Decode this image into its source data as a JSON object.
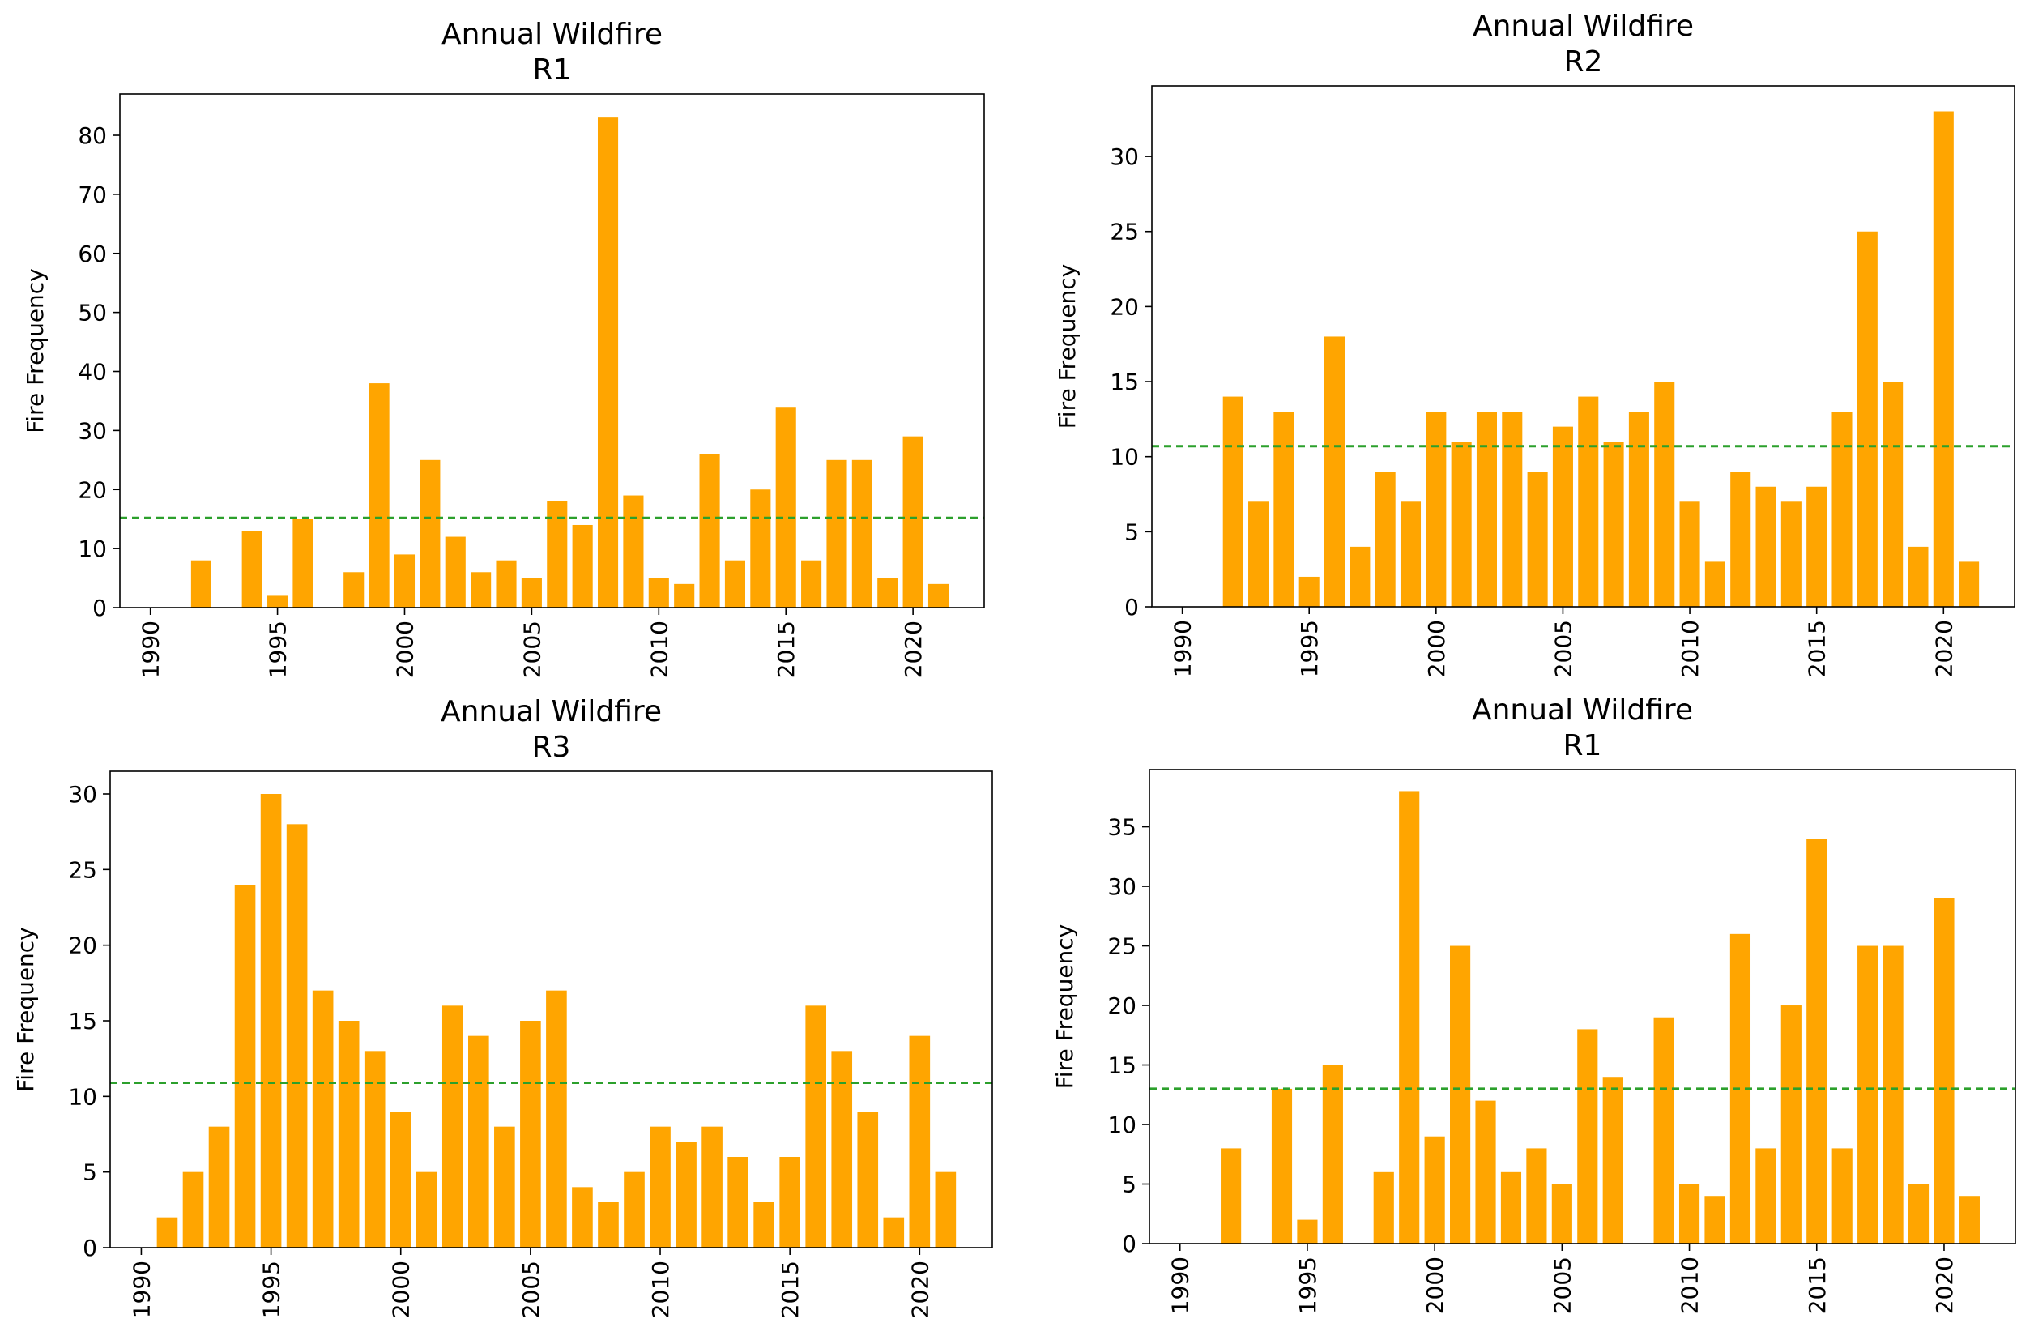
{
  "chart_data": [
    {
      "type": "bar",
      "title": "Annual Wildfire",
      "subtitle": "R1",
      "xlabel": "",
      "ylabel": "Fire Frequency",
      "xlim": [
        1988.8,
        2022.8
      ],
      "ylim": [
        0,
        87
      ],
      "xticks": [
        1990,
        1995,
        2000,
        2005,
        2010,
        2015,
        2020
      ],
      "yticks": [
        0,
        10,
        20,
        30,
        40,
        50,
        60,
        70,
        80
      ],
      "bar_color": "#ffa500",
      "mean_line": {
        "value": 15.2,
        "color": "#2ca02c",
        "style": "dashed"
      },
      "x": [
        1992,
        1994,
        1995,
        1996,
        1998,
        1999,
        2000,
        2001,
        2002,
        2003,
        2004,
        2005,
        2006,
        2007,
        2008,
        2009,
        2010,
        2011,
        2012,
        2013,
        2014,
        2015,
        2016,
        2017,
        2018,
        2019,
        2020,
        2021
      ],
      "values": [
        8,
        13,
        2,
        15,
        6,
        38,
        9,
        25,
        12,
        6,
        8,
        5,
        18,
        14,
        83,
        19,
        5,
        4,
        26,
        8,
        20,
        34,
        8,
        25,
        25,
        5,
        29,
        4
      ]
    },
    {
      "type": "bar",
      "title": "Annual Wildfire",
      "subtitle": "R2",
      "xlabel": "",
      "ylabel": "Fire Frequency",
      "xlim": [
        1988.8,
        2022.8
      ],
      "ylim": [
        0,
        34.7
      ],
      "xticks": [
        1990,
        1995,
        2000,
        2005,
        2010,
        2015,
        2020
      ],
      "yticks": [
        0,
        5,
        10,
        15,
        20,
        25,
        30
      ],
      "bar_color": "#ffa500",
      "mean_line": {
        "value": 10.7,
        "color": "#2ca02c",
        "style": "dashed"
      },
      "x": [
        1992,
        1993,
        1994,
        1995,
        1996,
        1997,
        1998,
        1999,
        2000,
        2001,
        2002,
        2003,
        2004,
        2005,
        2006,
        2007,
        2008,
        2009,
        2010,
        2011,
        2012,
        2013,
        2014,
        2015,
        2016,
        2017,
        2018,
        2019,
        2020,
        2021
      ],
      "values": [
        14,
        7,
        13,
        2,
        18,
        4,
        9,
        7,
        13,
        11,
        13,
        13,
        9,
        12,
        14,
        11,
        13,
        15,
        7,
        3,
        9,
        8,
        7,
        8,
        13,
        25,
        15,
        4,
        33,
        3
      ]
    },
    {
      "type": "bar",
      "title": "Annual Wildfire",
      "subtitle": "R3",
      "xlabel": "",
      "ylabel": "Fire Frequency",
      "xlim": [
        1988.8,
        2022.8
      ],
      "ylim": [
        0,
        31.5
      ],
      "xticks": [
        1990,
        1995,
        2000,
        2005,
        2010,
        2015,
        2020
      ],
      "yticks": [
        0,
        5,
        10,
        15,
        20,
        25,
        30
      ],
      "bar_color": "#ffa500",
      "mean_line": {
        "value": 10.9,
        "color": "#2ca02c",
        "style": "dashed"
      },
      "x": [
        1991,
        1992,
        1993,
        1994,
        1995,
        1996,
        1997,
        1998,
        1999,
        2000,
        2001,
        2002,
        2003,
        2004,
        2005,
        2006,
        2007,
        2008,
        2009,
        2010,
        2011,
        2012,
        2013,
        2014,
        2015,
        2016,
        2017,
        2018,
        2019,
        2020,
        2021
      ],
      "values": [
        2,
        5,
        8,
        24,
        30,
        28,
        17,
        15,
        13,
        9,
        5,
        16,
        14,
        8,
        15,
        17,
        4,
        3,
        5,
        8,
        7,
        8,
        6,
        3,
        6,
        16,
        13,
        9,
        2,
        14,
        5
      ]
    },
    {
      "type": "bar",
      "title": "Annual Wildfire",
      "subtitle": "R1",
      "xlabel": "",
      "ylabel": "Fire Frequency",
      "xlim": [
        1988.8,
        2022.8
      ],
      "ylim": [
        0,
        39.8
      ],
      "xticks": [
        1990,
        1995,
        2000,
        2005,
        2010,
        2015,
        2020
      ],
      "yticks": [
        0,
        5,
        10,
        15,
        20,
        25,
        30,
        35
      ],
      "bar_color": "#ffa500",
      "mean_line": {
        "value": 13.0,
        "color": "#2ca02c",
        "style": "dashed"
      },
      "x": [
        1992,
        1994,
        1995,
        1996,
        1998,
        1999,
        2000,
        2001,
        2002,
        2003,
        2004,
        2005,
        2006,
        2007,
        2009,
        2010,
        2011,
        2012,
        2013,
        2014,
        2015,
        2016,
        2017,
        2018,
        2019,
        2020,
        2021
      ],
      "values": [
        8,
        13,
        2,
        15,
        6,
        38,
        9,
        25,
        12,
        6,
        8,
        5,
        18,
        14,
        19,
        5,
        4,
        26,
        8,
        20,
        34,
        8,
        25,
        25,
        5,
        29,
        4
      ]
    }
  ]
}
